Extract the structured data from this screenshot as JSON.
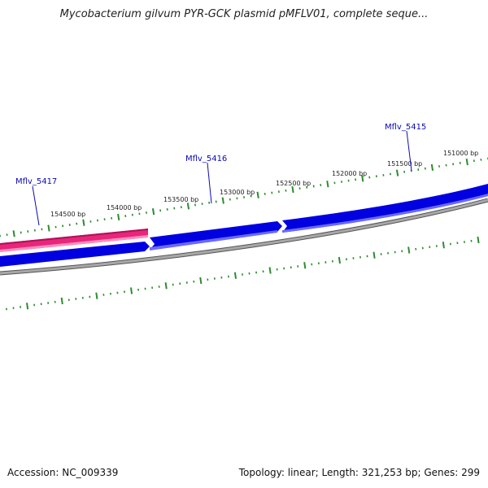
{
  "title": "Mycobacterium gilvum PYR-GCK plasmid pMFLV01, complete seque...",
  "footer": {
    "accession": "Accession: NC_009339",
    "summary": "Topology: linear; Length: 321,253 bp; Genes: 299"
  },
  "scale_labels": [
    "154500 bp",
    "154000 bp",
    "153500 bp",
    "153000 bp",
    "152500 bp",
    "152000 bp",
    "151500 bp",
    "151000 bp"
  ],
  "genes": [
    {
      "label": "Mflv_5417",
      "strand": "reverse",
      "color": "#e8267a"
    },
    {
      "label": "Mflv_5416",
      "strand": "forward",
      "color": "#0000e0"
    },
    {
      "label": "Mflv_5415",
      "strand": "forward",
      "color": "#0000e0"
    }
  ],
  "colors": {
    "scale": "#2e8b2e",
    "backbone": "#808080",
    "gene_label": "#0a0ab4",
    "forward_gene": "#0000e0",
    "reverse_gene": "#e8267a"
  }
}
